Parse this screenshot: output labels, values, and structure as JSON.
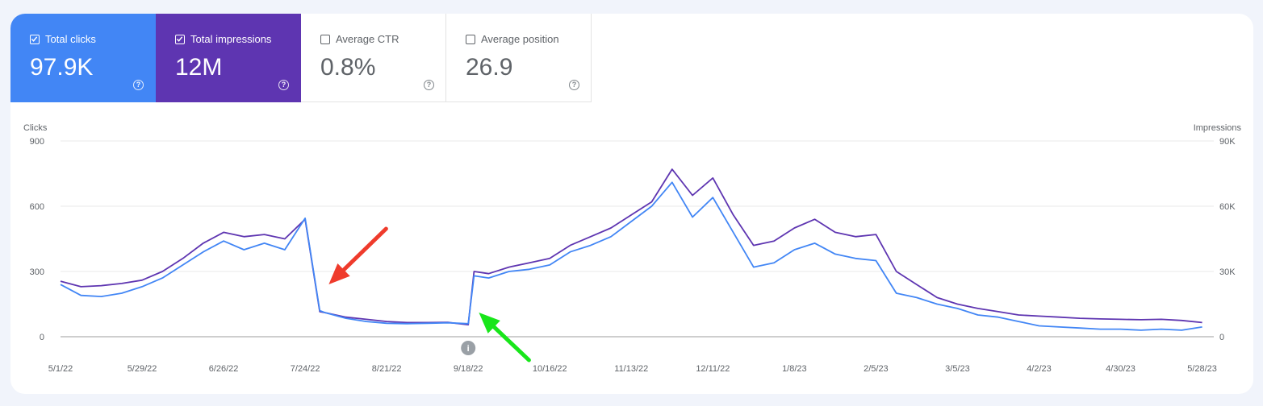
{
  "metrics": [
    {
      "label": "Total clicks",
      "value": "97.9K",
      "checked": true
    },
    {
      "label": "Total impressions",
      "value": "12M",
      "checked": true
    },
    {
      "label": "Average CTR",
      "value": "0.8%",
      "checked": false
    },
    {
      "label": "Average position",
      "value": "26.9",
      "checked": false
    }
  ],
  "colors": {
    "clicks": "#4286f5",
    "impressions": "#5e35b1",
    "red_arrow": "#ef3b2c",
    "green_arrow": "#18e61a"
  },
  "chart_data": {
    "type": "line",
    "title": "",
    "ylabel_left": "Clicks",
    "ylabel_right": "Impressions",
    "y_left_ticks": [
      "0",
      "300",
      "600",
      "900"
    ],
    "y_right_ticks": [
      "0",
      "30K",
      "60K",
      "90K"
    ],
    "ylim_left": [
      0,
      900
    ],
    "ylim_right": [
      0,
      90000
    ],
    "x_ticks": [
      "5/1/22",
      "5/29/22",
      "6/26/22",
      "7/24/22",
      "8/21/22",
      "9/18/22",
      "10/16/22",
      "11/13/22",
      "12/11/22",
      "1/8/23",
      "2/5/23",
      "3/5/23",
      "4/2/23",
      "4/30/23",
      "5/28/23"
    ],
    "grid": true,
    "annotation_icon": "info-icon",
    "annotation_date": "9/18/22",
    "series": [
      {
        "name": "Clicks",
        "axis": "left",
        "x": [
          "5/1/22",
          "5/8/22",
          "5/15/22",
          "5/22/22",
          "5/29/22",
          "6/5/22",
          "6/12/22",
          "6/19/22",
          "6/26/22",
          "7/3/22",
          "7/10/22",
          "7/17/22",
          "7/24/22",
          "7/29/22",
          "7/31/22",
          "8/7/22",
          "8/14/22",
          "8/21/22",
          "8/28/22",
          "9/4/22",
          "9/11/22",
          "9/18/22",
          "9/20/22",
          "9/25/22",
          "10/2/22",
          "10/9/22",
          "10/16/22",
          "10/23/22",
          "10/30/22",
          "11/6/22",
          "11/13/22",
          "11/20/22",
          "11/27/22",
          "12/4/22",
          "12/11/22",
          "12/18/22",
          "12/25/22",
          "1/1/23",
          "1/8/23",
          "1/15/23",
          "1/22/23",
          "1/29/23",
          "2/5/23",
          "2/12/23",
          "2/19/23",
          "2/26/23",
          "3/5/23",
          "3/12/23",
          "3/19/23",
          "3/26/23",
          "4/2/23",
          "4/9/23",
          "4/16/23",
          "4/23/23",
          "4/30/23",
          "5/7/23",
          "5/14/23",
          "5/21/23",
          "5/28/23"
        ],
        "values": [
          240,
          190,
          185,
          200,
          230,
          270,
          330,
          390,
          440,
          400,
          430,
          400,
          545,
          120,
          110,
          85,
          70,
          62,
          60,
          62,
          64,
          60,
          280,
          270,
          300,
          310,
          330,
          390,
          420,
          460,
          530,
          600,
          710,
          550,
          640,
          480,
          320,
          340,
          400,
          430,
          380,
          360,
          350,
          200,
          180,
          150,
          130,
          100,
          90,
          70,
          50,
          45,
          40,
          35,
          35,
          30,
          35,
          30,
          45
        ]
      },
      {
        "name": "Impressions",
        "axis": "right",
        "x": [
          "5/1/22",
          "5/8/22",
          "5/15/22",
          "5/22/22",
          "5/29/22",
          "6/5/22",
          "6/12/22",
          "6/19/22",
          "6/26/22",
          "7/3/22",
          "7/10/22",
          "7/17/22",
          "7/24/22",
          "7/29/22",
          "7/31/22",
          "8/7/22",
          "8/14/22",
          "8/21/22",
          "8/28/22",
          "9/4/22",
          "9/11/22",
          "9/18/22",
          "9/20/22",
          "9/25/22",
          "10/2/22",
          "10/9/22",
          "10/16/22",
          "10/23/22",
          "10/30/22",
          "11/6/22",
          "11/13/22",
          "11/20/22",
          "11/27/22",
          "12/4/22",
          "12/11/22",
          "12/18/22",
          "12/25/22",
          "1/1/23",
          "1/8/23",
          "1/15/23",
          "1/22/23",
          "1/29/23",
          "2/5/23",
          "2/12/23",
          "2/19/23",
          "2/26/23",
          "3/5/23",
          "3/12/23",
          "3/19/23",
          "3/26/23",
          "4/2/23",
          "4/9/23",
          "4/16/23",
          "4/23/23",
          "4/30/23",
          "5/7/23",
          "5/14/23",
          "5/21/23",
          "5/28/23"
        ],
        "values": [
          25500,
          23000,
          23500,
          24500,
          26000,
          30000,
          36000,
          43000,
          48000,
          46000,
          47000,
          45000,
          54000,
          11500,
          11000,
          9000,
          8000,
          7000,
          6500,
          6500,
          6600,
          5500,
          30000,
          29000,
          32000,
          34000,
          36000,
          42000,
          46000,
          50000,
          56000,
          62000,
          77000,
          65000,
          73000,
          56000,
          42000,
          44000,
          50000,
          54000,
          48000,
          46000,
          47000,
          30000,
          24000,
          18000,
          15000,
          13000,
          11500,
          10000,
          9500,
          9000,
          8500,
          8200,
          8000,
          7800,
          8000,
          7500,
          6500
        ]
      }
    ],
    "annotations": [
      {
        "type": "arrow",
        "color": "red",
        "target_date": "7/31/22"
      },
      {
        "type": "arrow",
        "color": "green",
        "target_date": "9/20/22"
      }
    ]
  }
}
